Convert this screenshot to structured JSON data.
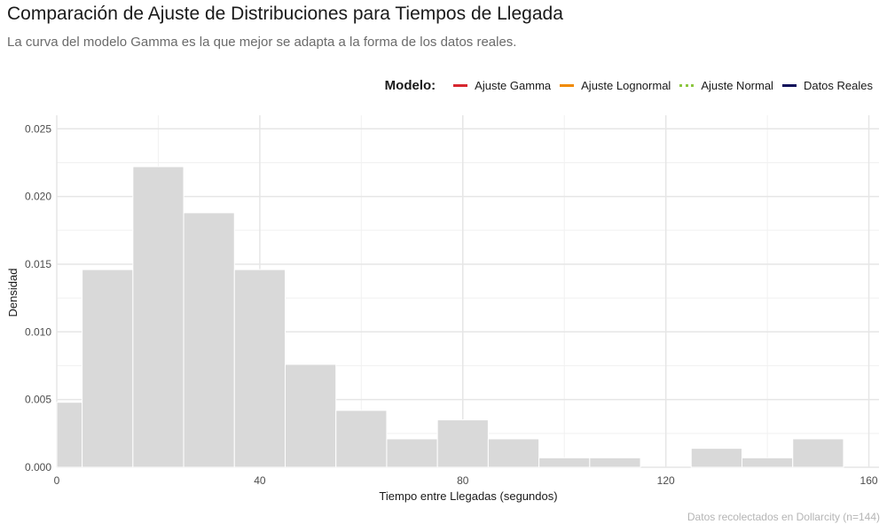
{
  "header": {
    "title": "Comparación de Ajuste de Distribuciones para Tiempos de Llegada",
    "subtitle": "La curva del modelo Gamma es la que mejor se adapta a la forma de los datos reales.",
    "caption": "Datos recolectados en Dollarcity (n=144)"
  },
  "legend": {
    "title": "Modelo:",
    "placement": "top-right",
    "items": [
      {
        "label": "Ajuste Gamma",
        "color": "#d7262f",
        "style": "solid"
      },
      {
        "label": "Ajuste Lognormal",
        "color": "#f08a00",
        "style": "solid"
      },
      {
        "label": "Ajuste Normal",
        "color": "#8cc63f",
        "style": "dotted"
      },
      {
        "label": "Datos Reales",
        "color": "#0d0d5a",
        "style": "solid"
      }
    ]
  },
  "chart_data": {
    "type": "bar",
    "title": "Comparación de Ajuste de Distribuciones para Tiempos de Llegada",
    "subtitle": "La curva del modelo Gamma es la que mejor se adapta a la forma de los datos reales.",
    "xlabel": "Tiempo entre Llegadas (segundos)",
    "ylabel": "Densidad",
    "xlim": [
      0,
      162
    ],
    "ylim": [
      0,
      0.026
    ],
    "x_ticks": [
      0,
      40,
      80,
      120,
      160
    ],
    "y_ticks": [
      0.0,
      0.005,
      0.01,
      0.015,
      0.02,
      0.025
    ],
    "grid": true,
    "bar_color": "#d9d9d9",
    "bins": [
      {
        "start": 0,
        "end": 5,
        "value": 0.0048
      },
      {
        "start": 5,
        "end": 15,
        "value": 0.0146
      },
      {
        "start": 15,
        "end": 25,
        "value": 0.0222
      },
      {
        "start": 25,
        "end": 35,
        "value": 0.0188
      },
      {
        "start": 35,
        "end": 45,
        "value": 0.0146
      },
      {
        "start": 45,
        "end": 55,
        "value": 0.0076
      },
      {
        "start": 55,
        "end": 65,
        "value": 0.0042
      },
      {
        "start": 65,
        "end": 75,
        "value": 0.0021
      },
      {
        "start": 75,
        "end": 85,
        "value": 0.0035
      },
      {
        "start": 85,
        "end": 95,
        "value": 0.0021
      },
      {
        "start": 95,
        "end": 105,
        "value": 0.0007
      },
      {
        "start": 105,
        "end": 115,
        "value": 0.0007
      },
      {
        "start": 115,
        "end": 125,
        "value": 0.0
      },
      {
        "start": 125,
        "end": 135,
        "value": 0.0014
      },
      {
        "start": 135,
        "end": 145,
        "value": 0.0007
      },
      {
        "start": 145,
        "end": 155,
        "value": 0.0021
      },
      {
        "start": 155,
        "end": 165,
        "value": 0.0
      }
    ]
  }
}
